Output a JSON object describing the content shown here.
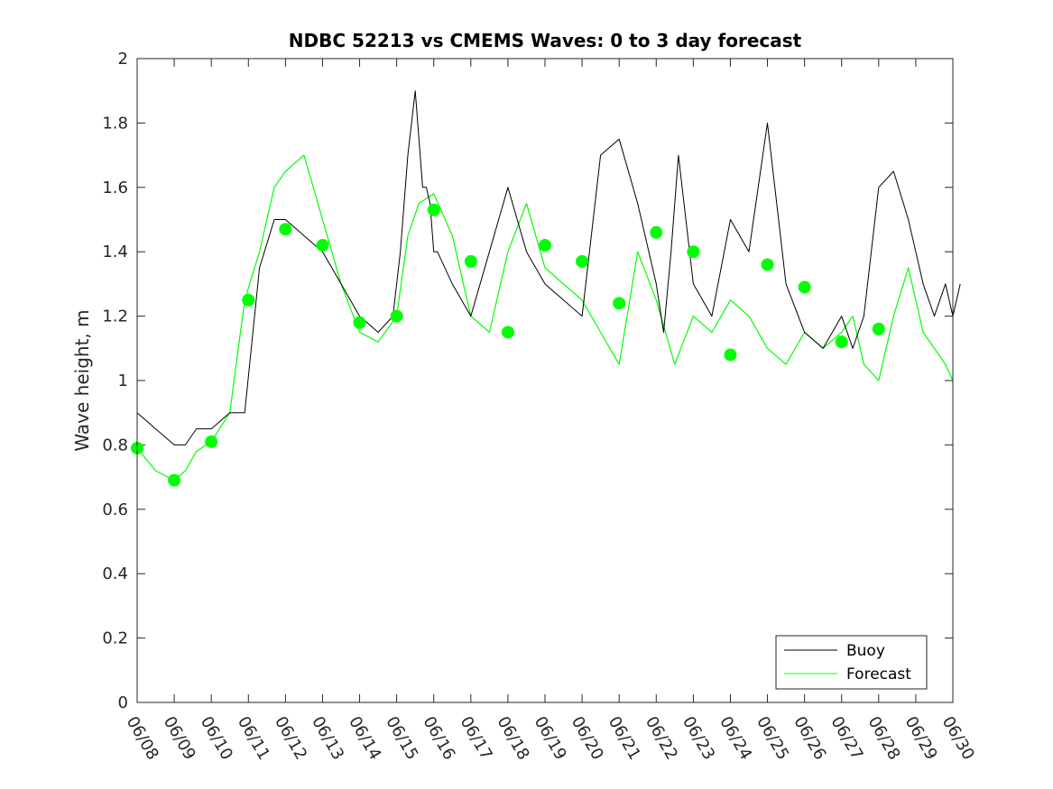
{
  "chart_data": {
    "type": "line",
    "title": "NDBC 52213 vs CMEMS Waves: 0 to 3 day forecast",
    "xlabel": "",
    "ylabel": "Wave height, m",
    "xlim": [
      "06/08",
      "06/30"
    ],
    "ylim": [
      0,
      2
    ],
    "x_ticks": [
      "06/08",
      "06/09",
      "06/10",
      "06/11",
      "06/12",
      "06/13",
      "06/14",
      "06/15",
      "06/16",
      "06/17",
      "06/18",
      "06/19",
      "06/20",
      "06/21",
      "06/22",
      "06/23",
      "06/24",
      "06/25",
      "06/26",
      "06/27",
      "06/28",
      "06/29",
      "06/30"
    ],
    "y_ticks": [
      "0",
      "0.2",
      "0.4",
      "0.6",
      "0.8",
      "1",
      "1.2",
      "1.4",
      "1.6",
      "1.8",
      "2"
    ],
    "grid": false,
    "legend_position": "bottom-right",
    "legend": [
      "Buoy",
      "Forecast"
    ],
    "colors": {
      "buoy": "#000000",
      "forecast": "#00ff00"
    },
    "series": [
      {
        "name": "Buoy",
        "x": [
          0,
          0.5,
          1,
          1.3,
          1.6,
          2,
          2.5,
          2.9,
          3.3,
          3.7,
          4,
          4.5,
          5,
          5.5,
          6,
          6.5,
          6.9,
          7.1,
          7.3,
          7.5,
          7.7,
          7.8,
          7.9,
          8,
          8.1,
          8.5,
          9,
          9.5,
          10,
          10.5,
          11,
          11.5,
          12,
          12.5,
          13,
          13.5,
          14,
          14.2,
          14.4,
          14.6,
          14.8,
          15,
          15.5,
          16,
          16.5,
          17,
          17.5,
          18,
          18.5,
          19,
          19.3,
          19.6,
          20,
          20.4,
          20.8,
          21,
          21.2,
          21.5,
          21.8,
          22,
          22.2
        ],
        "y": [
          0.9,
          0.85,
          0.8,
          0.8,
          0.85,
          0.85,
          0.9,
          0.9,
          1.35,
          1.5,
          1.5,
          1.45,
          1.4,
          1.3,
          1.2,
          1.15,
          1.2,
          1.4,
          1.7,
          1.9,
          1.6,
          1.6,
          1.55,
          1.4,
          1.4,
          1.3,
          1.2,
          1.4,
          1.6,
          1.4,
          1.3,
          1.25,
          1.2,
          1.7,
          1.75,
          1.55,
          1.3,
          1.15,
          1.4,
          1.7,
          1.5,
          1.3,
          1.2,
          1.5,
          1.4,
          1.8,
          1.3,
          1.15,
          1.1,
          1.2,
          1.1,
          1.2,
          1.6,
          1.65,
          1.5,
          1.4,
          1.3,
          1.2,
          1.3,
          1.2,
          1.3
        ]
      },
      {
        "name": "Forecast",
        "x": [
          0,
          0.5,
          1,
          1.3,
          1.6,
          2,
          2.5,
          2.9,
          3.3,
          3.7,
          4,
          4.5,
          5,
          5.5,
          6,
          6.5,
          7,
          7.3,
          7.6,
          8,
          8.5,
          9,
          9.5,
          10,
          10.5,
          11,
          11.5,
          12,
          12.5,
          13,
          13.5,
          14,
          14.5,
          15,
          15.5,
          16,
          16.5,
          17,
          17.5,
          18,
          18.5,
          19,
          19.3,
          19.6,
          20,
          20.4,
          20.8,
          21,
          21.2,
          21.5,
          21.8,
          22
        ],
        "y": [
          0.79,
          0.72,
          0.69,
          0.72,
          0.78,
          0.81,
          0.9,
          1.25,
          1.4,
          1.6,
          1.65,
          1.7,
          1.5,
          1.3,
          1.15,
          1.12,
          1.2,
          1.45,
          1.55,
          1.58,
          1.45,
          1.2,
          1.15,
          1.4,
          1.55,
          1.35,
          1.3,
          1.25,
          1.15,
          1.05,
          1.4,
          1.25,
          1.05,
          1.2,
          1.15,
          1.25,
          1.2,
          1.1,
          1.05,
          1.15,
          1.1,
          1.15,
          1.2,
          1.05,
          1.0,
          1.2,
          1.35,
          1.25,
          1.15,
          1.1,
          1.05,
          1.0
        ]
      },
      {
        "name": "Forecast day-0 markers",
        "x": [
          0,
          1,
          2,
          3,
          4,
          5,
          6,
          7,
          8,
          9,
          10,
          11,
          12,
          13,
          14,
          15,
          16,
          17,
          18,
          19,
          20
        ],
        "y": [
          0.79,
          0.69,
          0.81,
          1.25,
          1.47,
          1.42,
          1.18,
          1.2,
          1.53,
          1.37,
          1.15,
          1.42,
          1.37,
          1.24,
          1.46,
          1.4,
          1.08,
          1.36,
          1.29,
          1.12,
          1.16
        ]
      }
    ]
  }
}
